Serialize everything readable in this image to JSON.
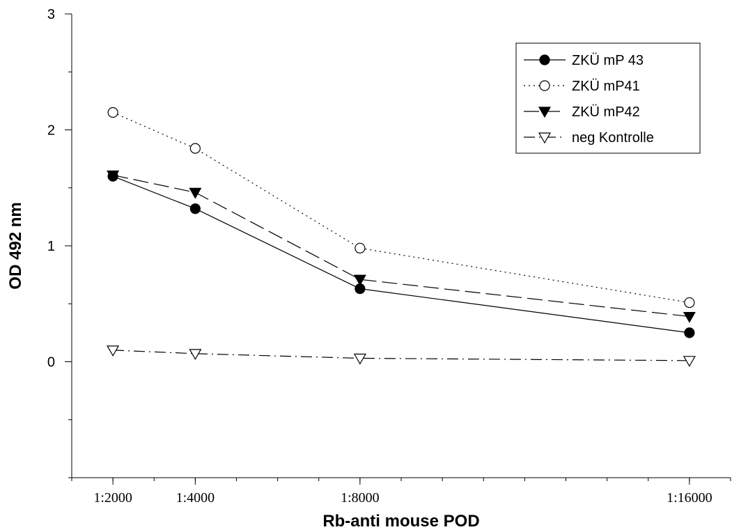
{
  "chart_data": {
    "type": "line",
    "title": "",
    "xlabel": "Rb-anti mouse POD",
    "ylabel": "OD 492 nm",
    "x_tick_labels": [
      "1:2000",
      "1:4000",
      "1:8000",
      "1:16000"
    ],
    "x_values": [
      2000,
      4000,
      8000,
      16000
    ],
    "xlim": [
      1000,
      17000
    ],
    "ylim": [
      -1,
      3
    ],
    "y_ticks": [
      0,
      1,
      2,
      3
    ],
    "grid": false,
    "legend_position": "top-right",
    "series": [
      {
        "name": "ZKÜ mP 43",
        "marker": "filled-circle",
        "line": "solid",
        "values": [
          1.6,
          1.32,
          0.63,
          0.25
        ]
      },
      {
        "name": "ZKÜ mP41",
        "marker": "open-circle",
        "line": "dotted",
        "values": [
          2.15,
          1.84,
          0.98,
          0.51
        ]
      },
      {
        "name": "ZKÜ mP42",
        "marker": "filled-triangle-down",
        "line": "long-dash",
        "values": [
          1.61,
          1.46,
          0.71,
          0.39
        ]
      },
      {
        "name": "neg Kontrolle",
        "marker": "open-triangle-down",
        "line": "dash-dot",
        "values": [
          0.1,
          0.07,
          0.03,
          0.01
        ]
      }
    ]
  }
}
